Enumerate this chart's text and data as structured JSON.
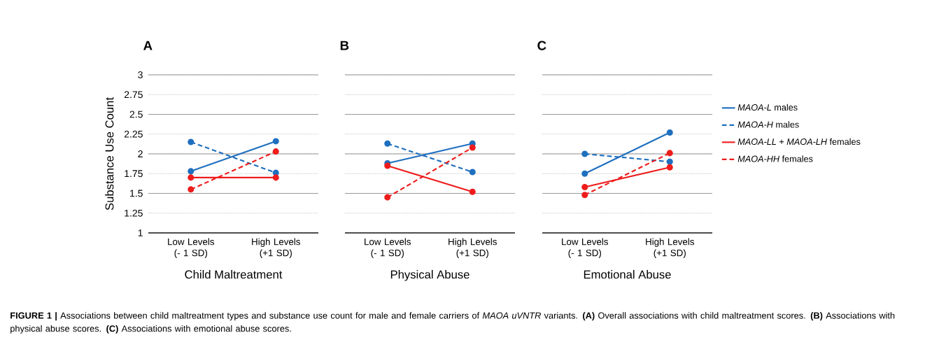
{
  "chart_data": [
    {
      "type": "line",
      "title": "A",
      "xlabel": "Child Maltreatment",
      "ylabel": "Substance Use Count",
      "categories": [
        "Low Levels (- 1 SD)",
        "High Levels (+1 SD)"
      ],
      "ylim": [
        1,
        3
      ],
      "yticks": [
        1,
        1.25,
        1.5,
        1.75,
        2,
        2.25,
        2.5,
        2.75,
        3
      ],
      "grid": "y",
      "marker": "circle",
      "series": [
        {
          "color": "#1f6fbf",
          "line_style": "solid",
          "values": [
            1.78,
            2.16
          ]
        },
        {
          "color": "#1f6fbf",
          "line_style": "dashed",
          "values": [
            2.15,
            1.76
          ]
        },
        {
          "color": "#ee1c1c",
          "line_style": "solid",
          "values": [
            1.7,
            1.7
          ]
        },
        {
          "color": "#ee1c1c",
          "line_style": "dashed",
          "values": [
            1.55,
            2.03
          ]
        }
      ],
      "annotations": [
        "**FIGURE 1 |** Associations between child maltreatment types and substance use count for male and female carriers of *MAOA uVNTR* variants. **(A)** Overall associations with child maltreatment scores. **(B)** Associations with physical abuse scores. **(C)** Associations with emotional abuse scores."
      ]
    },
    {
      "type": "line",
      "title": "B",
      "xlabel": "Physical Abuse",
      "categories": [
        "Low Levels (- 1 SD)",
        "High Levels (+1 SD)"
      ],
      "ylim": [
        1,
        3
      ],
      "yticks": [
        1,
        1.25,
        1.5,
        1.75,
        2,
        2.25,
        2.5,
        2.75,
        3
      ],
      "grid": "y",
      "marker": "circle",
      "tick_labels": "x",
      "series": [
        {
          "color": "#1f6fbf",
          "line_style": "solid",
          "values": [
            1.88,
            2.13
          ]
        },
        {
          "color": "#1f6fbf",
          "line_style": "dashed",
          "values": [
            2.13,
            1.77
          ]
        },
        {
          "color": "#ee1c1c",
          "line_style": "solid",
          "values": [
            1.85,
            1.52
          ]
        },
        {
          "color": "#ee1c1c",
          "line_style": "dashed",
          "values": [
            1.45,
            2.08
          ]
        }
      ]
    },
    {
      "type": "line",
      "title": "C",
      "xlabel": "Emotional Abuse",
      "categories": [
        "Low Levels (- 1 SD)",
        "High Levels (+1 SD)"
      ],
      "ylim": [
        1,
        3
      ],
      "yticks": [
        1,
        1.25,
        1.5,
        1.75,
        2,
        2.25,
        2.5,
        2.75,
        3
      ],
      "grid": "y",
      "marker": "circle",
      "tick_labels": "x",
      "legend": "right",
      "series": [
        {
          "name": "*MAOA-L* males",
          "color": "#1f6fbf",
          "line_style": "solid",
          "values": [
            1.75,
            2.27
          ]
        },
        {
          "name": "*MAOA-H* males",
          "color": "#1f6fbf",
          "line_style": "dashed",
          "values": [
            2.0,
            1.9
          ]
        },
        {
          "name": "*MAOA-LL* + *MAOA-LH* females",
          "color": "#ee1c1c",
          "line_style": "solid",
          "values": [
            1.58,
            1.83
          ]
        },
        {
          "name": "*MAOA-HH* females",
          "color": "#ee1c1c",
          "line_style": "dashed",
          "values": [
            1.48,
            2.01
          ]
        }
      ]
    }
  ]
}
